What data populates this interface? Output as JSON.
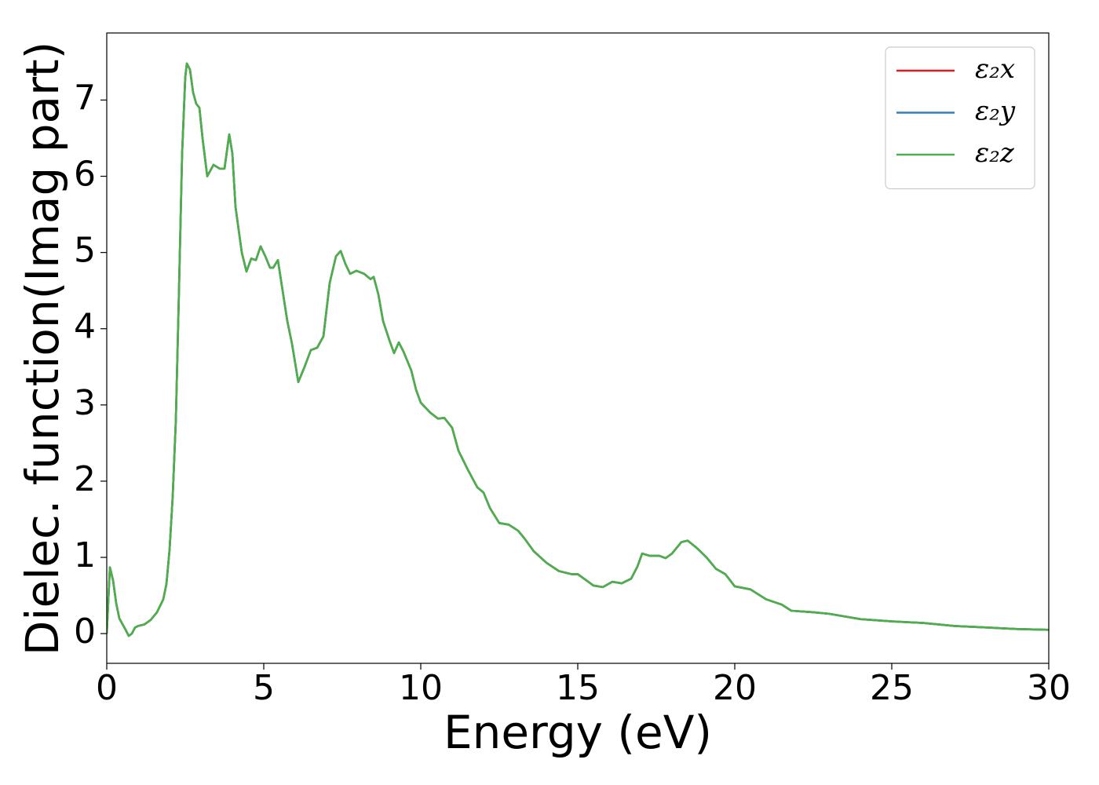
{
  "chart_data": {
    "type": "line",
    "x_label": "Energy (eV)",
    "y_label": "Dielec. function(Imag part)",
    "x": [
      0,
      0.1,
      0.2,
      0.3,
      0.4,
      0.6,
      0.7,
      0.8,
      0.9,
      1.0,
      1.2,
      1.4,
      1.6,
      1.8,
      1.9,
      2.0,
      2.1,
      2.2,
      2.3,
      2.4,
      2.5,
      2.55,
      2.65,
      2.75,
      2.85,
      2.95,
      3.05,
      3.2,
      3.4,
      3.6,
      3.75,
      3.9,
      4.0,
      4.1,
      4.3,
      4.45,
      4.6,
      4.75,
      4.9,
      5.05,
      5.2,
      5.3,
      5.45,
      5.6,
      5.75,
      5.9,
      6.1,
      6.3,
      6.5,
      6.7,
      6.9,
      7.1,
      7.3,
      7.45,
      7.6,
      7.75,
      7.95,
      8.2,
      8.4,
      8.5,
      8.65,
      8.8,
      9.0,
      9.15,
      9.3,
      9.45,
      9.7,
      9.85,
      10.0,
      10.3,
      10.55,
      10.75,
      11.0,
      11.2,
      11.5,
      11.8,
      12.0,
      12.2,
      12.5,
      12.8,
      13.1,
      13.3,
      13.6,
      14.0,
      14.4,
      14.8,
      15.0,
      15.2,
      15.5,
      15.8,
      16.1,
      16.4,
      16.7,
      16.9,
      17.05,
      17.3,
      17.6,
      17.8,
      18.0,
      18.3,
      18.5,
      18.8,
      19.1,
      19.4,
      19.7,
      20.0,
      20.5,
      21.0,
      21.5,
      21.8,
      22.5,
      23.0,
      24.0,
      25.0,
      26.0,
      27.0,
      28.0,
      29.0,
      30.0
    ],
    "series": [
      {
        "name": "ε₂x",
        "color": "#e41a1c",
        "values": [
          0,
          0.87,
          0.7,
          0.4,
          0.2,
          0.05,
          -0.03,
          0.0,
          0.08,
          0.1,
          0.12,
          0.18,
          0.28,
          0.45,
          0.65,
          1.1,
          1.8,
          2.8,
          4.5,
          6.3,
          7.3,
          7.48,
          7.4,
          7.1,
          6.95,
          6.9,
          6.5,
          6.0,
          6.15,
          6.1,
          6.1,
          6.55,
          6.3,
          5.6,
          5.0,
          4.75,
          4.92,
          4.9,
          5.08,
          4.95,
          4.8,
          4.8,
          4.9,
          4.5,
          4.1,
          3.8,
          3.3,
          3.5,
          3.72,
          3.75,
          3.9,
          4.6,
          4.95,
          5.02,
          4.85,
          4.72,
          4.76,
          4.72,
          4.65,
          4.68,
          4.45,
          4.1,
          3.85,
          3.68,
          3.82,
          3.7,
          3.45,
          3.2,
          3.03,
          2.9,
          2.82,
          2.83,
          2.7,
          2.4,
          2.15,
          1.92,
          1.85,
          1.65,
          1.45,
          1.43,
          1.35,
          1.25,
          1.08,
          0.93,
          0.82,
          0.78,
          0.78,
          0.72,
          0.63,
          0.61,
          0.68,
          0.66,
          0.72,
          0.88,
          1.05,
          1.02,
          1.02,
          0.99,
          1.05,
          1.2,
          1.22,
          1.12,
          1.0,
          0.85,
          0.78,
          0.62,
          0.58,
          0.45,
          0.38,
          0.3,
          0.28,
          0.26,
          0.19,
          0.16,
          0.14,
          0.1,
          0.08,
          0.06,
          0.05
        ]
      },
      {
        "name": "ε₂y",
        "color": "#377eb8",
        "values": [
          0,
          0.87,
          0.7,
          0.4,
          0.2,
          0.05,
          -0.03,
          0.0,
          0.08,
          0.1,
          0.12,
          0.18,
          0.28,
          0.45,
          0.65,
          1.1,
          1.8,
          2.8,
          4.5,
          6.3,
          7.3,
          7.48,
          7.4,
          7.1,
          6.95,
          6.9,
          6.5,
          6.0,
          6.15,
          6.1,
          6.1,
          6.55,
          6.3,
          5.6,
          5.0,
          4.75,
          4.92,
          4.9,
          5.08,
          4.95,
          4.8,
          4.8,
          4.9,
          4.5,
          4.1,
          3.8,
          3.3,
          3.5,
          3.72,
          3.75,
          3.9,
          4.6,
          4.95,
          5.02,
          4.85,
          4.72,
          4.76,
          4.72,
          4.65,
          4.68,
          4.45,
          4.1,
          3.85,
          3.68,
          3.82,
          3.7,
          3.45,
          3.2,
          3.03,
          2.9,
          2.82,
          2.83,
          2.7,
          2.4,
          2.15,
          1.92,
          1.85,
          1.65,
          1.45,
          1.43,
          1.35,
          1.25,
          1.08,
          0.93,
          0.82,
          0.78,
          0.78,
          0.72,
          0.63,
          0.61,
          0.68,
          0.66,
          0.72,
          0.88,
          1.05,
          1.02,
          1.02,
          0.99,
          1.05,
          1.2,
          1.22,
          1.12,
          1.0,
          0.85,
          0.78,
          0.62,
          0.58,
          0.45,
          0.38,
          0.3,
          0.28,
          0.26,
          0.19,
          0.16,
          0.14,
          0.1,
          0.08,
          0.06,
          0.05
        ]
      },
      {
        "name": "ε₂z",
        "color": "#4daf4a",
        "values": [
          0,
          0.87,
          0.7,
          0.4,
          0.2,
          0.05,
          -0.03,
          0.0,
          0.08,
          0.1,
          0.12,
          0.18,
          0.28,
          0.45,
          0.65,
          1.1,
          1.8,
          2.8,
          4.5,
          6.3,
          7.3,
          7.48,
          7.4,
          7.1,
          6.95,
          6.9,
          6.5,
          6.0,
          6.15,
          6.1,
          6.1,
          6.55,
          6.3,
          5.6,
          5.0,
          4.75,
          4.92,
          4.9,
          5.08,
          4.95,
          4.8,
          4.8,
          4.9,
          4.5,
          4.1,
          3.8,
          3.3,
          3.5,
          3.72,
          3.75,
          3.9,
          4.6,
          4.95,
          5.02,
          4.85,
          4.72,
          4.76,
          4.72,
          4.65,
          4.68,
          4.45,
          4.1,
          3.85,
          3.68,
          3.82,
          3.7,
          3.45,
          3.2,
          3.03,
          2.9,
          2.82,
          2.83,
          2.7,
          2.4,
          2.15,
          1.92,
          1.85,
          1.65,
          1.45,
          1.43,
          1.35,
          1.25,
          1.08,
          0.93,
          0.82,
          0.78,
          0.78,
          0.72,
          0.63,
          0.61,
          0.68,
          0.66,
          0.72,
          0.88,
          1.05,
          1.02,
          1.02,
          0.99,
          1.05,
          1.2,
          1.22,
          1.12,
          1.0,
          0.85,
          0.78,
          0.62,
          0.58,
          0.45,
          0.38,
          0.3,
          0.28,
          0.26,
          0.19,
          0.16,
          0.14,
          0.1,
          0.08,
          0.06,
          0.05
        ]
      }
    ],
    "xlim": [
      0,
      30
    ],
    "xticks": [
      0,
      5,
      10,
      15,
      20,
      25,
      30
    ],
    "ylim": [
      -0.39,
      7.88
    ],
    "yticks": [
      0,
      1,
      2,
      3,
      4,
      5,
      6,
      7
    ],
    "legend": "upper right",
    "grid": false
  }
}
